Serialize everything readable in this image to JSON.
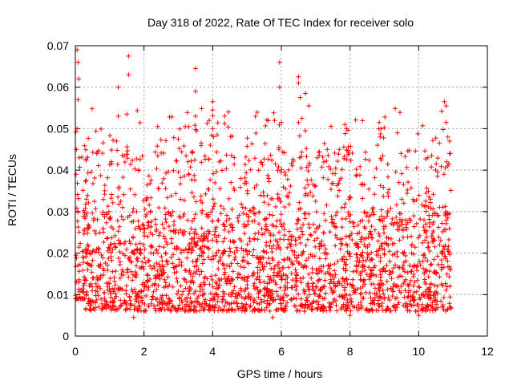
{
  "chart_data": {
    "type": "scatter",
    "title": "Day 318 of 2022, Rate Of TEC Index for receiver solo",
    "xlabel": "GPS time / hours",
    "ylabel": "ROTI / TECUs",
    "xlim": [
      0,
      12
    ],
    "ylim": [
      0,
      0.07
    ],
    "xticks": [
      "0",
      "2",
      "4",
      "6",
      "8",
      "10",
      "12"
    ],
    "xtick_values": [
      0,
      2,
      4,
      6,
      8,
      10,
      12
    ],
    "yticks": [
      "0",
      "0.01",
      "0.02",
      "0.03",
      "0.04",
      "0.05",
      "0.06",
      "0.07"
    ],
    "ytick_values": [
      0,
      0.01,
      0.02,
      0.03,
      0.04,
      0.05,
      0.06,
      0.07
    ],
    "grid": true,
    "marker": "+",
    "color": "#ff0000",
    "series": [
      {
        "name": "ROTI",
        "x_range": [
          0.0,
          10.95
        ],
        "typical_range": [
          0.006,
          0.03
        ],
        "notable_points": [
          [
            0.05,
            0.069
          ],
          [
            0.08,
            0.066
          ],
          [
            0.1,
            0.062
          ],
          [
            0.08,
            0.057
          ],
          [
            0.05,
            0.05
          ],
          [
            0.03,
            0.045
          ],
          [
            0.02,
            0.039
          ],
          [
            1.25,
            0.06
          ],
          [
            1.25,
            0.053
          ],
          [
            1.2,
            0.047
          ],
          [
            1.55,
            0.0675
          ],
          [
            1.55,
            0.063
          ],
          [
            1.5,
            0.0535
          ],
          [
            2.4,
            0.0505
          ],
          [
            3.0,
            0.0475
          ],
          [
            3.2,
            0.0505
          ],
          [
            3.3,
            0.0505
          ],
          [
            3.5,
            0.0645
          ],
          [
            3.5,
            0.059
          ],
          [
            3.5,
            0.053
          ],
          [
            3.9,
            0.052
          ],
          [
            4.0,
            0.0565
          ],
          [
            4.0,
            0.0545
          ],
          [
            4.0,
            0.05
          ],
          [
            5.8,
            0.052
          ],
          [
            5.95,
            0.066
          ],
          [
            5.95,
            0.06
          ],
          [
            6.0,
            0.0515
          ],
          [
            6.5,
            0.0625
          ],
          [
            6.5,
            0.061
          ],
          [
            6.55,
            0.0575
          ],
          [
            6.7,
            0.0585
          ],
          [
            6.8,
            0.0555
          ],
          [
            6.6,
            0.0525
          ],
          [
            6.7,
            0.0495
          ],
          [
            7.85,
            0.051
          ],
          [
            7.9,
            0.05
          ],
          [
            8.85,
            0.0515
          ],
          [
            8.9,
            0.05
          ],
          [
            8.8,
            0.046
          ],
          [
            10.75,
            0.0565
          ],
          [
            10.8,
            0.0555
          ],
          [
            10.8,
            0.0515
          ],
          [
            10.85,
            0.048
          ],
          [
            10.9,
            0.047
          ],
          [
            10.9,
            0.044
          ],
          [
            1.7,
            0.0045
          ],
          [
            8.0,
            0.005
          ],
          [
            10.0,
            0.005
          ],
          [
            5.75,
            0.0045
          ]
        ]
      }
    ]
  }
}
